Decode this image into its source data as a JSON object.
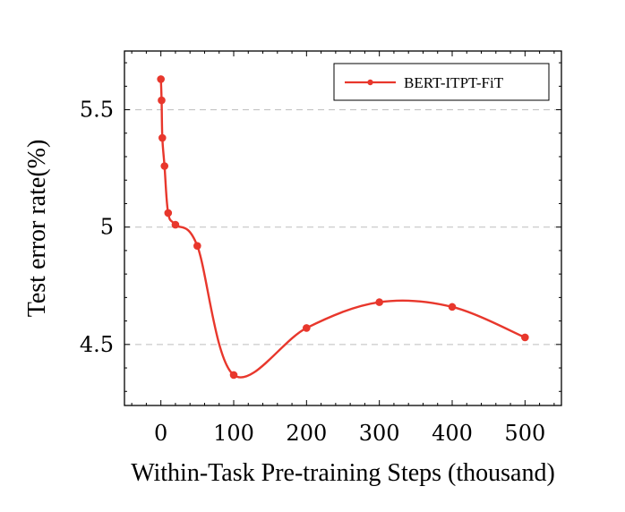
{
  "chart_data": {
    "type": "line",
    "title": "",
    "xlabel": "Within-Task Pre-training Steps (thousand)",
    "ylabel": "Test error rate(%)",
    "xlim": [
      -50,
      550
    ],
    "ylim": [
      4.24,
      5.75
    ],
    "xticks": [
      0,
      100,
      200,
      300,
      400,
      500
    ],
    "xtick_labels": [
      "0",
      "100",
      "200",
      "300",
      "400",
      "500"
    ],
    "yticks": [
      4.5,
      5,
      5.5
    ],
    "ytick_labels": [
      "4.5",
      "5",
      "5.5"
    ],
    "grid": "horizontal-dashed",
    "legend_position": "top-right",
    "colors": {
      "series": "#e8372c",
      "grid": "#bdbdbd",
      "axis": "#000000"
    },
    "series": [
      {
        "name": "BERT-ITPT-FiT",
        "x": [
          0,
          1,
          2,
          5,
          10,
          20,
          50,
          100,
          200,
          300,
          400,
          500
        ],
        "y": [
          5.63,
          5.54,
          5.38,
          5.26,
          5.06,
          5.01,
          4.92,
          4.37,
          4.57,
          4.68,
          4.66,
          4.53
        ]
      }
    ]
  }
}
